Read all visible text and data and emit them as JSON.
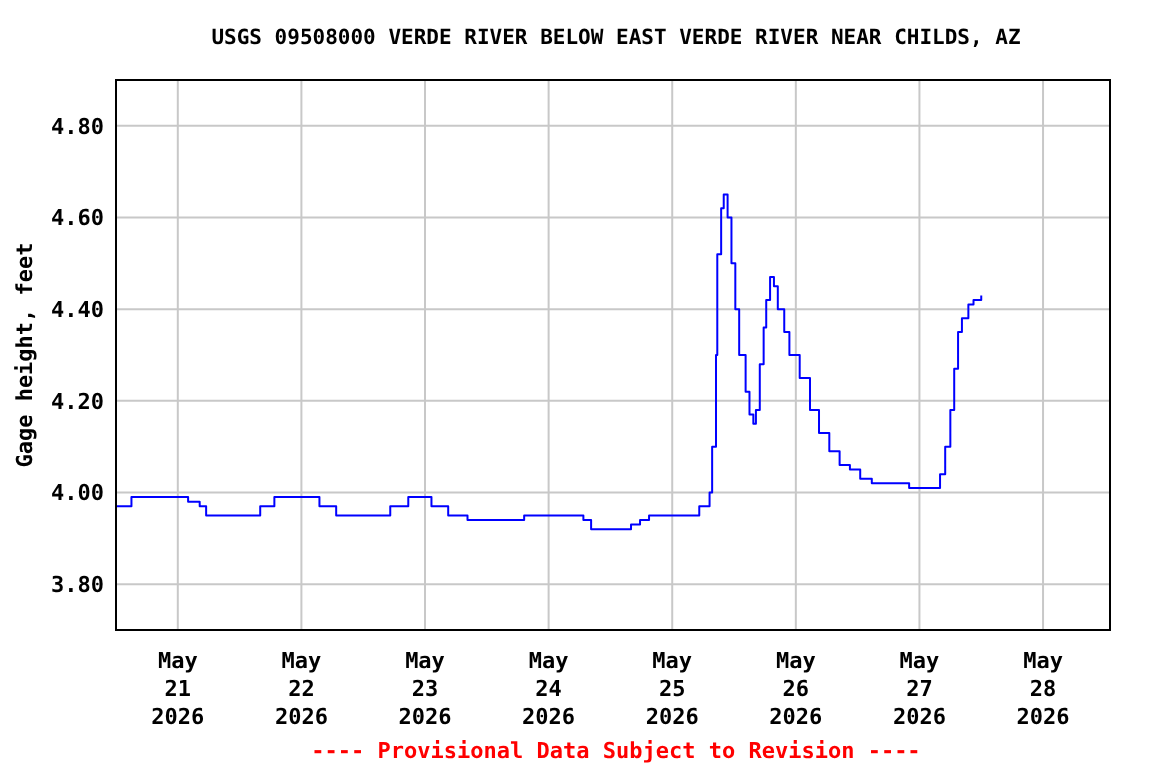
{
  "chart_data": {
    "type": "step",
    "title": "USGS 09508000 VERDE RIVER BELOW EAST VERDE RIVER NEAR CHILDS, AZ",
    "ylabel": "Gage height, feet",
    "annotations": [
      "---- Provisional Data Subject to Revision ----"
    ],
    "xlim": [
      "2026-05-20T12:00",
      "2026-05-28T13:00"
    ],
    "xticks": [
      {
        "value": "2026-05-21",
        "label": "May 21 2026"
      },
      {
        "value": "2026-05-22",
        "label": "May 22 2026"
      },
      {
        "value": "2026-05-23",
        "label": "May 23 2026"
      },
      {
        "value": "2026-05-24",
        "label": "May 24 2026"
      },
      {
        "value": "2026-05-25",
        "label": "May 25 2026"
      },
      {
        "value": "2026-05-26",
        "label": "May 26 2026"
      },
      {
        "value": "2026-05-27",
        "label": "May 27 2026"
      },
      {
        "value": "2026-05-28",
        "label": "May 28 2026"
      }
    ],
    "ylim": [
      3.7,
      4.9
    ],
    "yticks": [
      {
        "value": 3.8,
        "label": "3.80"
      },
      {
        "value": 4.0,
        "label": "4.00"
      },
      {
        "value": 4.2,
        "label": "4.20"
      },
      {
        "value": 4.4,
        "label": "4.40"
      },
      {
        "value": 4.6,
        "label": "4.60"
      },
      {
        "value": 4.8,
        "label": "4.80"
      }
    ],
    "grid": true,
    "line_style": "solid",
    "series": [
      {
        "color": "#0000ff",
        "x": [
          "2026-05-20T12:00",
          "2026-05-20T15:00",
          "2026-05-21T02:00",
          "2026-05-21T04:15",
          "2026-05-21T05:30",
          "2026-05-21T16:00",
          "2026-05-21T18:45",
          "2026-05-22T03:30",
          "2026-05-22T06:45",
          "2026-05-22T17:15",
          "2026-05-22T20:45",
          "2026-05-23T01:15",
          "2026-05-23T04:30",
          "2026-05-23T08:15",
          "2026-05-23T19:15",
          "2026-05-24T06:45",
          "2026-05-24T08:15",
          "2026-05-24T16:00",
          "2026-05-24T17:45",
          "2026-05-24T19:30",
          "2026-05-25T05:15",
          "2026-05-25T07:15",
          "2026-05-25T07:45",
          "2026-05-25T08:30",
          "2026-05-25T08:45",
          "2026-05-25T09:30",
          "2026-05-25T10:00",
          "2026-05-25T10:45",
          "2026-05-25T11:30",
          "2026-05-25T12:15",
          "2026-05-25T13:00",
          "2026-05-25T14:15",
          "2026-05-25T15:00",
          "2026-05-25T15:45",
          "2026-05-25T16:15",
          "2026-05-25T17:00",
          "2026-05-25T17:45",
          "2026-05-25T18:15",
          "2026-05-25T19:00",
          "2026-05-25T19:45",
          "2026-05-25T20:30",
          "2026-05-25T21:45",
          "2026-05-25T22:45",
          "2026-05-26T00:45",
          "2026-05-26T02:45",
          "2026-05-26T04:30",
          "2026-05-26T06:30",
          "2026-05-26T08:30",
          "2026-05-26T10:30",
          "2026-05-26T12:30",
          "2026-05-26T14:45",
          "2026-05-26T22:00",
          "2026-05-27T04:00",
          "2026-05-27T05:00",
          "2026-05-27T06:00",
          "2026-05-27T06:45",
          "2026-05-27T07:30",
          "2026-05-27T08:15",
          "2026-05-27T09:30",
          "2026-05-27T10:30",
          "2026-05-27T12:00"
        ],
        "values": [
          3.97,
          3.99,
          3.98,
          3.97,
          3.95,
          3.97,
          3.99,
          3.97,
          3.95,
          3.97,
          3.99,
          3.97,
          3.95,
          3.94,
          3.95,
          3.94,
          3.92,
          3.93,
          3.94,
          3.95,
          3.97,
          4.0,
          4.1,
          4.3,
          4.52,
          4.62,
          4.65,
          4.6,
          4.5,
          4.4,
          4.3,
          4.22,
          4.17,
          4.15,
          4.18,
          4.28,
          4.36,
          4.42,
          4.47,
          4.45,
          4.4,
          4.35,
          4.3,
          4.25,
          4.18,
          4.13,
          4.09,
          4.06,
          4.05,
          4.03,
          4.02,
          4.01,
          4.04,
          4.1,
          4.18,
          4.27,
          4.35,
          4.38,
          4.41,
          4.42,
          4.43
        ]
      }
    ]
  }
}
